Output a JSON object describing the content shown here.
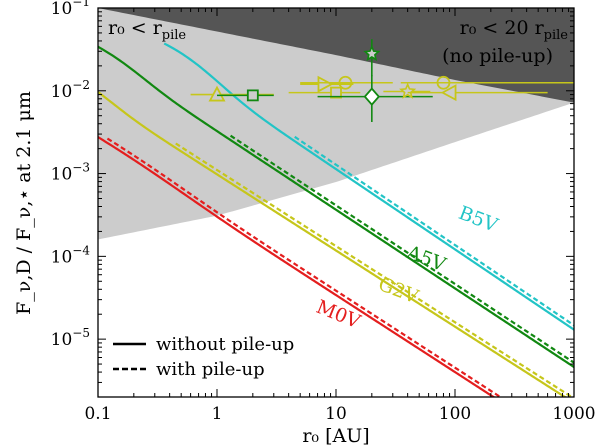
{
  "chart_data": {
    "type": "line",
    "xscale": "log",
    "yscale": "log",
    "xlim": [
      0.1,
      1000
    ],
    "ylim": [
      2e-06,
      0.1
    ],
    "xlabel": "r₀ [AU]",
    "ylabel": "F_ν,D / F_ν,⋆  at 2.1 μm",
    "x_ticks": [
      {
        "value": 0.1,
        "label": "0.1"
      },
      {
        "value": 1,
        "label": "1"
      },
      {
        "value": 10,
        "label": "10"
      },
      {
        "value": 100,
        "label": "100"
      },
      {
        "value": 1000,
        "label": "1000"
      }
    ],
    "y_ticks": [
      {
        "value": 1e-05,
        "base": "10",
        "exp": "−5"
      },
      {
        "value": 0.0001,
        "base": "10",
        "exp": "−4"
      },
      {
        "value": 0.001,
        "base": "10",
        "exp": "−3"
      },
      {
        "value": 0.01,
        "base": "10",
        "exp": "−2"
      },
      {
        "value": 0.1,
        "base": "10",
        "exp": "−1"
      }
    ],
    "regions": [
      {
        "name": "inside-pile-radius",
        "label_main": "r₀ < r",
        "label_sub": "pile",
        "color": "#555555",
        "boundary": [
          [
            0.1,
            0.1
          ],
          [
            1.0,
            0.052
          ],
          [
            10,
            0.027
          ],
          [
            100,
            0.0135
          ],
          [
            1000,
            0.0072
          ]
        ]
      },
      {
        "name": "no-pile-up",
        "label_main": "r₀ < 20 r",
        "label_sub": "pile",
        "label_line2": "(no pile-up)",
        "color": "#cccccc",
        "boundary": [
          [
            0.1,
            0.00016
          ],
          [
            1.0,
            0.00031
          ],
          [
            10,
            0.00079
          ],
          [
            100,
            0.0024
          ],
          [
            1000,
            0.0072
          ]
        ]
      }
    ],
    "series": [
      {
        "name": "B5V",
        "color": "#22c4c6",
        "peak_x": 0.36,
        "peak_y": 0.0088,
        "width": 0.28,
        "asym_a": 1.3e-05,
        "asym_b": 0.42,
        "label_at": [
          150,
          0.00024
        ]
      },
      {
        "name": "A5V",
        "color": "#118811",
        "peak_x": 0.1,
        "peak_y": 0.005,
        "width": 0.25,
        "asym_a": 4.6e-06,
        "asym_b": 0.4,
        "label_at": [
          55,
          8e-05
        ]
      },
      {
        "name": "G2V",
        "color": "#c6c61b",
        "peak_x": 0.05,
        "peak_y": 0.003,
        "width": 0.26,
        "asym_a": 1.7e-06,
        "asym_b": 0.37,
        "label_at": [
          32,
          3.3e-05
        ]
      },
      {
        "name": "M0V",
        "color": "#e41e1e",
        "peak_x": 0.05,
        "peak_y": 0.00035,
        "width": 0.5,
        "asym_a": 4.7e-07,
        "asym_b": 0.38,
        "label_at": [
          10,
          1.7e-05
        ]
      }
    ],
    "dashed_offset_factor": 1.13,
    "dashed_start": {
      "B5V": 4.5,
      "A5V": 1.3,
      "G2V": 0.45,
      "M0V": 0.12
    },
    "observations": [
      {
        "marker": "triangle-up",
        "color": "#c6c61b",
        "x": 1.0,
        "y": 0.009,
        "xerr": [
          0.6,
          3.0
        ],
        "yerr": [
          0.0008,
          0.0008
        ]
      },
      {
        "marker": "square",
        "color": "#118811",
        "x": 2.0,
        "y": 0.0088,
        "xerr": [
          1.0,
          3.0
        ],
        "yerr": [
          0.0006,
          0.0006
        ]
      },
      {
        "marker": "triangle-right",
        "color": "#c6c61b",
        "x": 8.0,
        "y": 0.012,
        "xerr": [
          5.0,
          14.0
        ],
        "yerr": [
          0.0008,
          0.0008
        ]
      },
      {
        "marker": "circle",
        "color": "#c6c61b",
        "x": 12.0,
        "y": 0.0125,
        "xerr": [
          5.0,
          30.0
        ],
        "yerr": [
          0.001,
          0.001
        ]
      },
      {
        "marker": "square",
        "color": "#c6c61b",
        "x": 10.0,
        "y": 0.0095,
        "xerr": [
          4.0,
          16.0
        ],
        "yerr": [
          0.0008,
          0.0008
        ]
      },
      {
        "marker": "star",
        "color": "#118811",
        "x": 20.0,
        "y": 0.028,
        "xerr": [
          18.0,
          22.0
        ],
        "yerr": [
          0.015,
          0.042
        ]
      },
      {
        "marker": "diamond",
        "color": "#118811",
        "x": 20.0,
        "y": 0.0085,
        "xerr": [
          7.0,
          65.0
        ],
        "yerr": [
          0.0042,
          0.0155
        ]
      },
      {
        "marker": "star",
        "color": "#c6c61b",
        "x": 40.0,
        "y": 0.0098,
        "xerr": [
          25.0,
          62.0
        ],
        "yerr": [
          0.0009,
          0.0009
        ]
      },
      {
        "marker": "circle",
        "color": "#c6c61b",
        "x": 80.0,
        "y": 0.0125,
        "xerr": [
          35.0,
          1000.0
        ],
        "yerr": [
          0.001,
          0.001
        ]
      },
      {
        "marker": "triangle-left",
        "color": "#c6c61b",
        "x": 90.0,
        "y": 0.0095,
        "xerr": [
          40.0,
          600.0
        ],
        "yerr": [
          0.0009,
          0.0009
        ]
      }
    ],
    "legend": {
      "placement": "bottom-left",
      "entries": [
        {
          "label": "without pile-up",
          "style": "solid"
        },
        {
          "label": "with pile-up",
          "style": "dashed"
        }
      ]
    }
  }
}
